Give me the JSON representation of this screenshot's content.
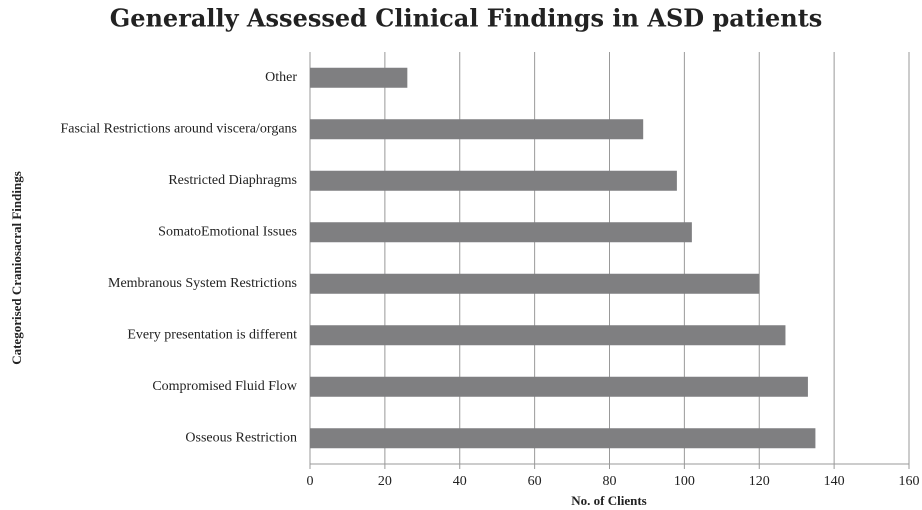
{
  "chart_data": {
    "type": "bar",
    "orientation": "horizontal",
    "title": "Generally Assessed Clinical Findings in ASD patients",
    "x_label": "No. of Clients",
    "y_label": "Categorised Craniosacral  Findings",
    "categories": [
      "Other",
      "Fascial Restrictions around viscera/organs",
      "Restricted Diaphragms",
      "SomatoEmotional Issues",
      "Membranous System Restrictions",
      "Every presentation is different",
      "Compromised Fluid Flow",
      "Osseous Restriction"
    ],
    "values": [
      26,
      89,
      98,
      102,
      120,
      127,
      133,
      135
    ],
    "color": "#7f7f81",
    "xlim": [
      0,
      160
    ],
    "xticks": [
      0,
      20,
      40,
      60,
      80,
      100,
      120,
      140,
      160
    ],
    "grid": true
  }
}
